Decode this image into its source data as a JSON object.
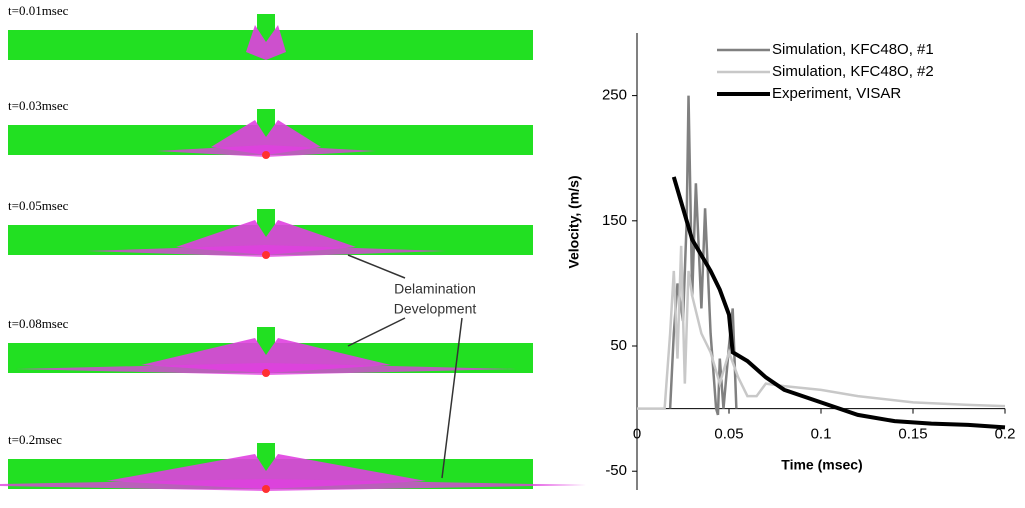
{
  "frames": [
    "t=0.01msec",
    "t=0.03msec",
    "t=0.05msec",
    "t=0.08msec",
    "t=0.2msec"
  ],
  "annotation": [
    "Delamination",
    "Development"
  ],
  "chart_data": {
    "type": "line",
    "x_label": "Time (msec)",
    "y_label": "Velocity, (m/s)",
    "xlim": [
      0,
      0.2
    ],
    "xticks": [
      0,
      0.05,
      0.1,
      0.15,
      0.2
    ],
    "ylim": [
      -65,
      300
    ],
    "yticks": [
      -50,
      50,
      150,
      250
    ],
    "legend": "upper right",
    "series": [
      {
        "name": "Simulation, KFC48O, #1",
        "color": "#808080",
        "x": [
          0.018,
          0.02,
          0.022,
          0.025,
          0.027,
          0.028,
          0.03,
          0.032,
          0.035,
          0.037,
          0.04,
          0.042,
          0.043,
          0.044,
          0.045,
          0.047,
          0.05,
          0.052,
          0.054
        ],
        "values": [
          0,
          60,
          100,
          70,
          150,
          250,
          90,
          180,
          80,
          160,
          60,
          20,
          0,
          -5,
          40,
          0,
          50,
          80,
          0
        ]
      },
      {
        "name": "Simulation, KFC48O, #2",
        "color": "#c8c8c8",
        "x": [
          0,
          0.015,
          0.018,
          0.02,
          0.022,
          0.024,
          0.026,
          0.028,
          0.03,
          0.035,
          0.04,
          0.045,
          0.05,
          0.055,
          0.06,
          0.065,
          0.07,
          0.08,
          0.1,
          0.12,
          0.15,
          0.18,
          0.2
        ],
        "values": [
          0,
          0,
          60,
          110,
          40,
          130,
          20,
          110,
          90,
          60,
          45,
          20,
          45,
          25,
          10,
          10,
          20,
          18,
          15,
          10,
          5,
          3,
          2
        ]
      },
      {
        "name": "Experiment, VISAR",
        "color": "#000000",
        "x": [
          0.02,
          0.025,
          0.03,
          0.04,
          0.045,
          0.05,
          0.052,
          0.06,
          0.07,
          0.08,
          0.1,
          0.12,
          0.14,
          0.16,
          0.18,
          0.2
        ],
        "values": [
          185,
          160,
          135,
          110,
          95,
          75,
          45,
          38,
          25,
          15,
          5,
          -5,
          -10,
          -12,
          -13,
          -15
        ]
      }
    ]
  }
}
